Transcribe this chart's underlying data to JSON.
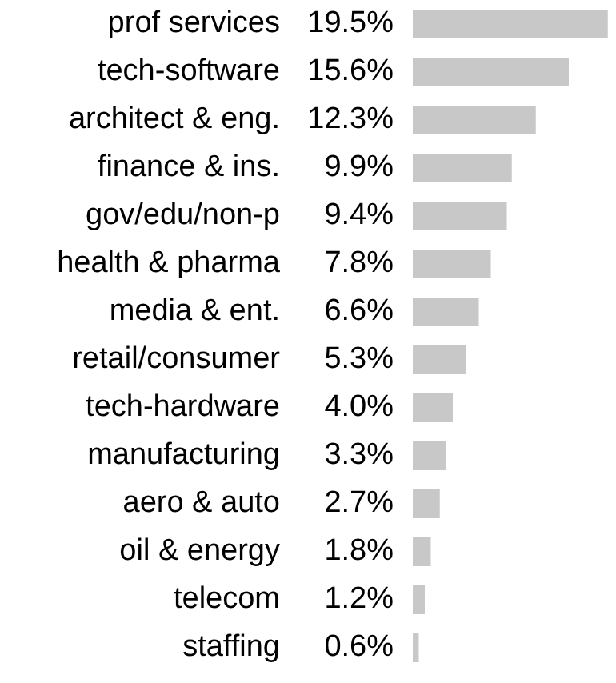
{
  "chart_data": {
    "type": "bar",
    "orientation": "horizontal",
    "categories": [
      "prof services",
      "tech-software",
      "architect & eng.",
      "finance & ins.",
      "gov/edu/non-p",
      "health & pharma",
      "media & ent.",
      "retail/consumer",
      "tech-hardware",
      "manufacturing",
      "aero & auto",
      "oil & energy",
      "telecom",
      "staffing"
    ],
    "values": [
      19.5,
      15.6,
      12.3,
      9.9,
      9.4,
      7.8,
      6.6,
      5.3,
      4.0,
      3.3,
      2.7,
      1.8,
      1.2,
      0.6
    ],
    "value_labels": [
      "19.5%",
      "15.6%",
      "12.3%",
      "9.9%",
      "9.4%",
      "7.8%",
      "6.6%",
      "5.3%",
      "4.0%",
      "3.3%",
      "2.7%",
      "1.8%",
      "1.2%",
      "0.6%"
    ],
    "color": "#c8c8c8",
    "legend": false
  }
}
